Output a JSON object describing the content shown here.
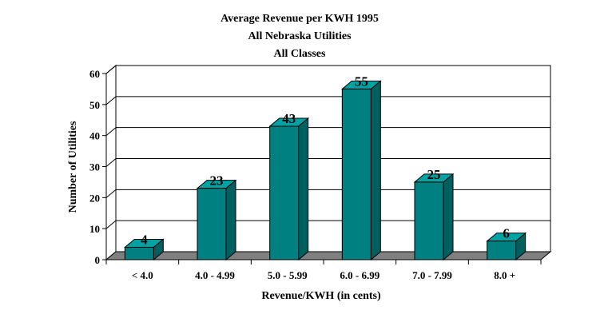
{
  "chart_data": {
    "type": "bar",
    "title": [
      "Average Revenue per KWH 1995",
      "All Nebraska Utilities",
      "All Classes"
    ],
    "xlabel": "Revenue/KWH (in cents)",
    "ylabel": "Number of Utilities",
    "categories": [
      "< 4.0",
      "4.0 - 4.99",
      "5.0 - 5.99",
      "6.0 - 6.99",
      "7.0 - 7.99",
      "8.0 +"
    ],
    "values": [
      4,
      23,
      43,
      55,
      25,
      6
    ],
    "ylim": [
      0,
      60
    ],
    "yticks": [
      0,
      10,
      20,
      30,
      40,
      50,
      60
    ],
    "grid": true,
    "style": "3d",
    "colors": {
      "bar_front": "#008080",
      "bar_top": "#00a3a3",
      "bar_side": "#006060",
      "floor": "#808080",
      "grid": "#000000"
    }
  }
}
